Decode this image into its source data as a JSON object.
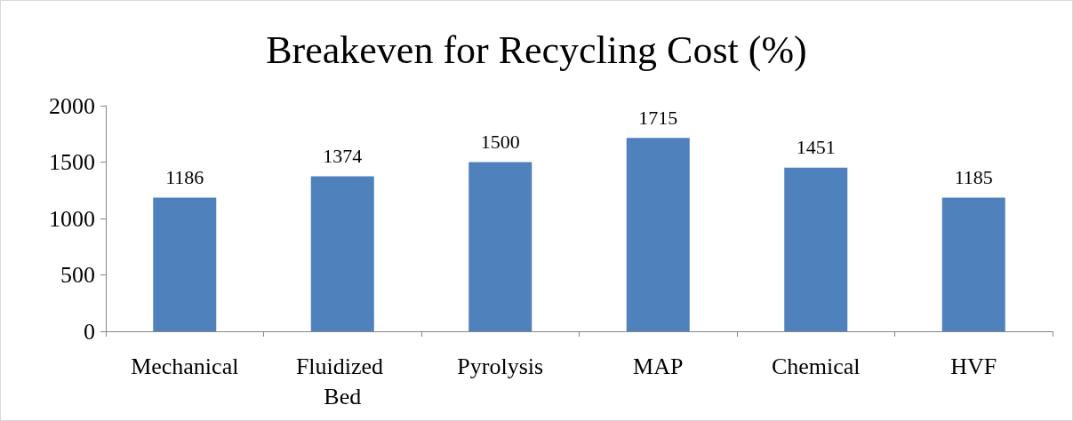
{
  "chart_data": {
    "type": "bar",
    "title": "Breakeven for Recycling Cost (%)",
    "categories": [
      "Mechanical",
      "Fluidized Bed",
      "Pyrolysis",
      "MAP",
      "Chemical",
      "HVF"
    ],
    "values": [
      1186,
      1374,
      1500,
      1715,
      1451,
      1185
    ],
    "color": "#4f81bd",
    "ylim": [
      0,
      2000
    ],
    "yticks": [
      0,
      500,
      1000,
      1500,
      2000
    ],
    "grid": false,
    "data_labels": true
  }
}
